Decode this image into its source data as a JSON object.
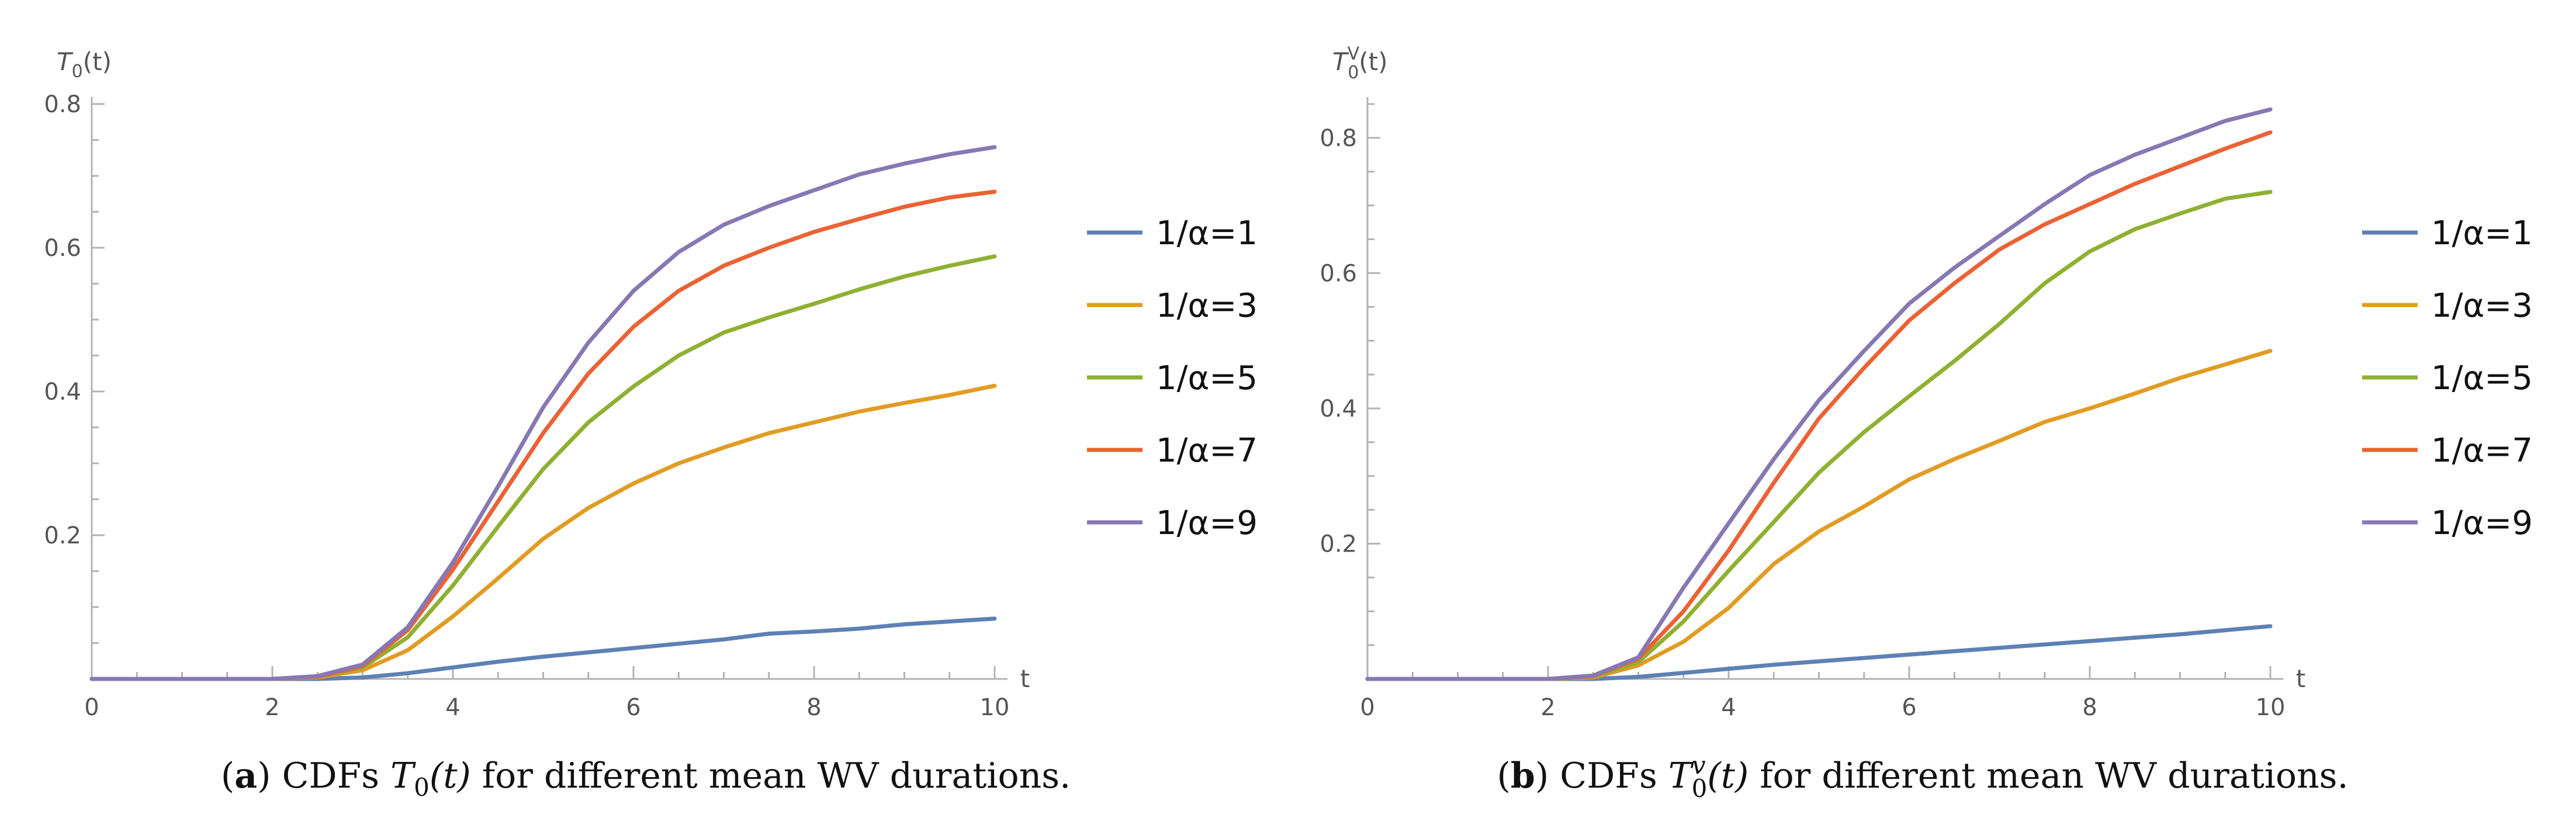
{
  "chart_data": [
    {
      "type": "line",
      "panel_tag": "a",
      "caption_prefix": "CDFs ",
      "caption_math": "T",
      "caption_sub": "0",
      "caption_sup": "",
      "caption_arg": "(t)",
      "caption_suffix": " for different mean WV durations.",
      "ylabel": "T",
      "ylabel_sub": "0",
      "ylabel_sup": "",
      "ylabel_arg": "(t)",
      "xlabel": "t",
      "xlim": [
        0,
        10
      ],
      "ylim": [
        0,
        0.8
      ],
      "x_ticks": [
        0,
        2,
        4,
        6,
        8,
        10
      ],
      "y_ticks": [
        0.2,
        0.4,
        0.6,
        0.8
      ],
      "x_tick_labels": [
        "0",
        "2",
        "4",
        "6",
        "8",
        "10"
      ],
      "y_tick_labels": [
        "0.2",
        "0.4",
        "0.6",
        "0.8"
      ],
      "x": [
        0,
        0.5,
        1,
        1.5,
        2,
        2.5,
        3,
        3.5,
        4,
        4.5,
        5,
        5.5,
        6,
        6.5,
        7,
        7.5,
        8,
        8.5,
        9,
        9.5,
        10
      ],
      "series": [
        {
          "name": "1/α=1",
          "color": "#5e81b5",
          "values": [
            0,
            0,
            0,
            0,
            0,
            0,
            0.002,
            0.008,
            0.016,
            0.024,
            0.031,
            0.037,
            0.043,
            0.049,
            0.055,
            0.063,
            0.066,
            0.07,
            0.076,
            0.08,
            0.084
          ]
        },
        {
          "name": "1/α=3",
          "color": "#e19c24",
          "values": [
            0,
            0,
            0,
            0,
            0,
            0.002,
            0.012,
            0.04,
            0.087,
            0.14,
            0.195,
            0.238,
            0.272,
            0.3,
            0.322,
            0.342,
            0.357,
            0.372,
            0.384,
            0.395,
            0.408
          ]
        },
        {
          "name": "1/α=5",
          "color": "#8fb032",
          "values": [
            0,
            0,
            0,
            0,
            0,
            0.003,
            0.016,
            0.058,
            0.13,
            0.212,
            0.292,
            0.357,
            0.407,
            0.45,
            0.482,
            0.503,
            0.522,
            0.542,
            0.56,
            0.575,
            0.588
          ]
        },
        {
          "name": "1/α=7",
          "color": "#eb6235",
          "values": [
            0,
            0,
            0,
            0,
            0,
            0.003,
            0.018,
            0.068,
            0.152,
            0.247,
            0.342,
            0.425,
            0.49,
            0.54,
            0.575,
            0.6,
            0.622,
            0.64,
            0.657,
            0.67,
            0.678
          ]
        },
        {
          "name": "1/α=9",
          "color": "#8778b3",
          "values": [
            0,
            0,
            0,
            0,
            0,
            0.004,
            0.02,
            0.072,
            0.162,
            0.268,
            0.378,
            0.468,
            0.54,
            0.594,
            0.632,
            0.658,
            0.68,
            0.702,
            0.717,
            0.73,
            0.74
          ]
        }
      ]
    },
    {
      "type": "line",
      "panel_tag": "b",
      "caption_prefix": "CDFs ",
      "caption_math": "T",
      "caption_sub": "0",
      "caption_sup": "v",
      "caption_arg": "(t)",
      "caption_suffix": " for different mean WV durations.",
      "ylabel": "T",
      "ylabel_sub": "0",
      "ylabel_sup": "V",
      "ylabel_arg": "(t)",
      "xlabel": "t",
      "xlim": [
        0,
        10
      ],
      "ylim": [
        0,
        0.85
      ],
      "x_ticks": [
        0,
        2,
        4,
        6,
        8,
        10
      ],
      "y_ticks": [
        0.2,
        0.4,
        0.6,
        0.8
      ],
      "x_tick_labels": [
        "0",
        "2",
        "4",
        "6",
        "8",
        "10"
      ],
      "y_tick_labels": [
        "0.2",
        "0.4",
        "0.6",
        "0.8"
      ],
      "x": [
        0,
        0.5,
        1,
        1.5,
        2,
        2.5,
        3,
        3.5,
        4,
        4.5,
        5,
        5.5,
        6,
        6.5,
        7,
        7.5,
        8,
        8.5,
        9,
        9.5,
        10
      ],
      "series": [
        {
          "name": "1/α=1",
          "color": "#5e81b5",
          "values": [
            0,
            0,
            0,
            0,
            0,
            0,
            0.003,
            0.009,
            0.015,
            0.021,
            0.026,
            0.031,
            0.036,
            0.041,
            0.046,
            0.051,
            0.056,
            0.061,
            0.066,
            0.072,
            0.078
          ]
        },
        {
          "name": "1/α=3",
          "color": "#e19c24",
          "values": [
            0,
            0,
            0,
            0,
            0,
            0.002,
            0.02,
            0.055,
            0.105,
            0.17,
            0.218,
            0.255,
            0.295,
            0.325,
            0.352,
            0.38,
            0.4,
            0.422,
            0.445,
            0.465,
            0.485
          ]
        },
        {
          "name": "1/α=5",
          "color": "#8fb032",
          "values": [
            0,
            0,
            0,
            0,
            0,
            0.003,
            0.025,
            0.085,
            0.16,
            0.232,
            0.305,
            0.365,
            0.418,
            0.47,
            0.525,
            0.585,
            0.632,
            0.665,
            0.688,
            0.71,
            0.72
          ]
        },
        {
          "name": "1/α=7",
          "color": "#eb6235",
          "values": [
            0,
            0,
            0,
            0,
            0,
            0.004,
            0.03,
            0.1,
            0.19,
            0.29,
            0.385,
            0.46,
            0.53,
            0.585,
            0.635,
            0.672,
            0.702,
            0.732,
            0.758,
            0.784,
            0.808
          ]
        },
        {
          "name": "1/α=9",
          "color": "#8778b3",
          "values": [
            0,
            0,
            0,
            0,
            0,
            0.005,
            0.032,
            0.135,
            0.23,
            0.325,
            0.412,
            0.485,
            0.555,
            0.608,
            0.655,
            0.702,
            0.745,
            0.775,
            0.8,
            0.825,
            0.842
          ]
        }
      ]
    }
  ]
}
